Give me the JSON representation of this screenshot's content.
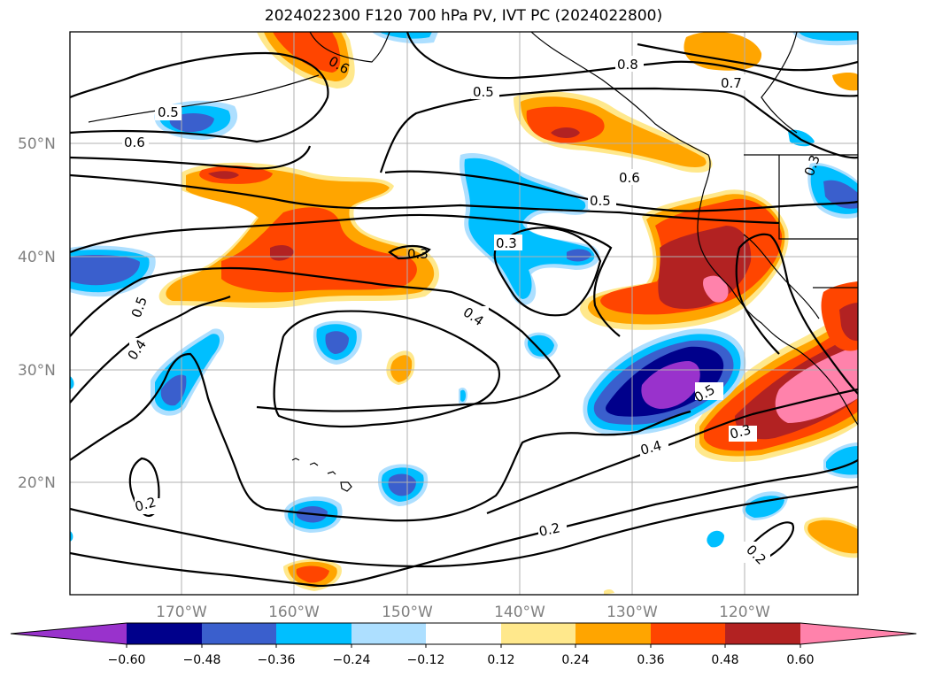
{
  "title": "2024022300 F120 700 hPa PV, IVT PC (2024022800)",
  "lat_labels": [
    "50°N",
    "40°N",
    "30°N",
    "20°N"
  ],
  "lon_labels": [
    "170°W",
    "160°W",
    "150°W",
    "140°W",
    "130°W",
    "120°W"
  ],
  "colorbar": {
    "ticks": [
      "−0.60",
      "−0.48",
      "−0.36",
      "−0.24",
      "−0.12",
      "0.12",
      "0.24",
      "0.36",
      "0.48",
      "0.60"
    ],
    "colors": [
      "#9932CC",
      "#00008B",
      "#3A5FCD",
      "#00BFFF",
      "#ADDFFF",
      "#FFFFFF",
      "#FFE88C",
      "#FFA500",
      "#FF4500",
      "#B22222",
      "#FF82AB"
    ]
  },
  "contour_labels": [
    "0.5",
    "0.6",
    "0.5",
    "0.8",
    "0.7",
    "0.6",
    "0.5",
    "0.3",
    "0.3",
    "0.5",
    "0.4",
    "0.4",
    "0.5",
    "0.3",
    "0.4",
    "0.2",
    "0.2",
    "0.2",
    "0.6",
    "0.3"
  ]
}
